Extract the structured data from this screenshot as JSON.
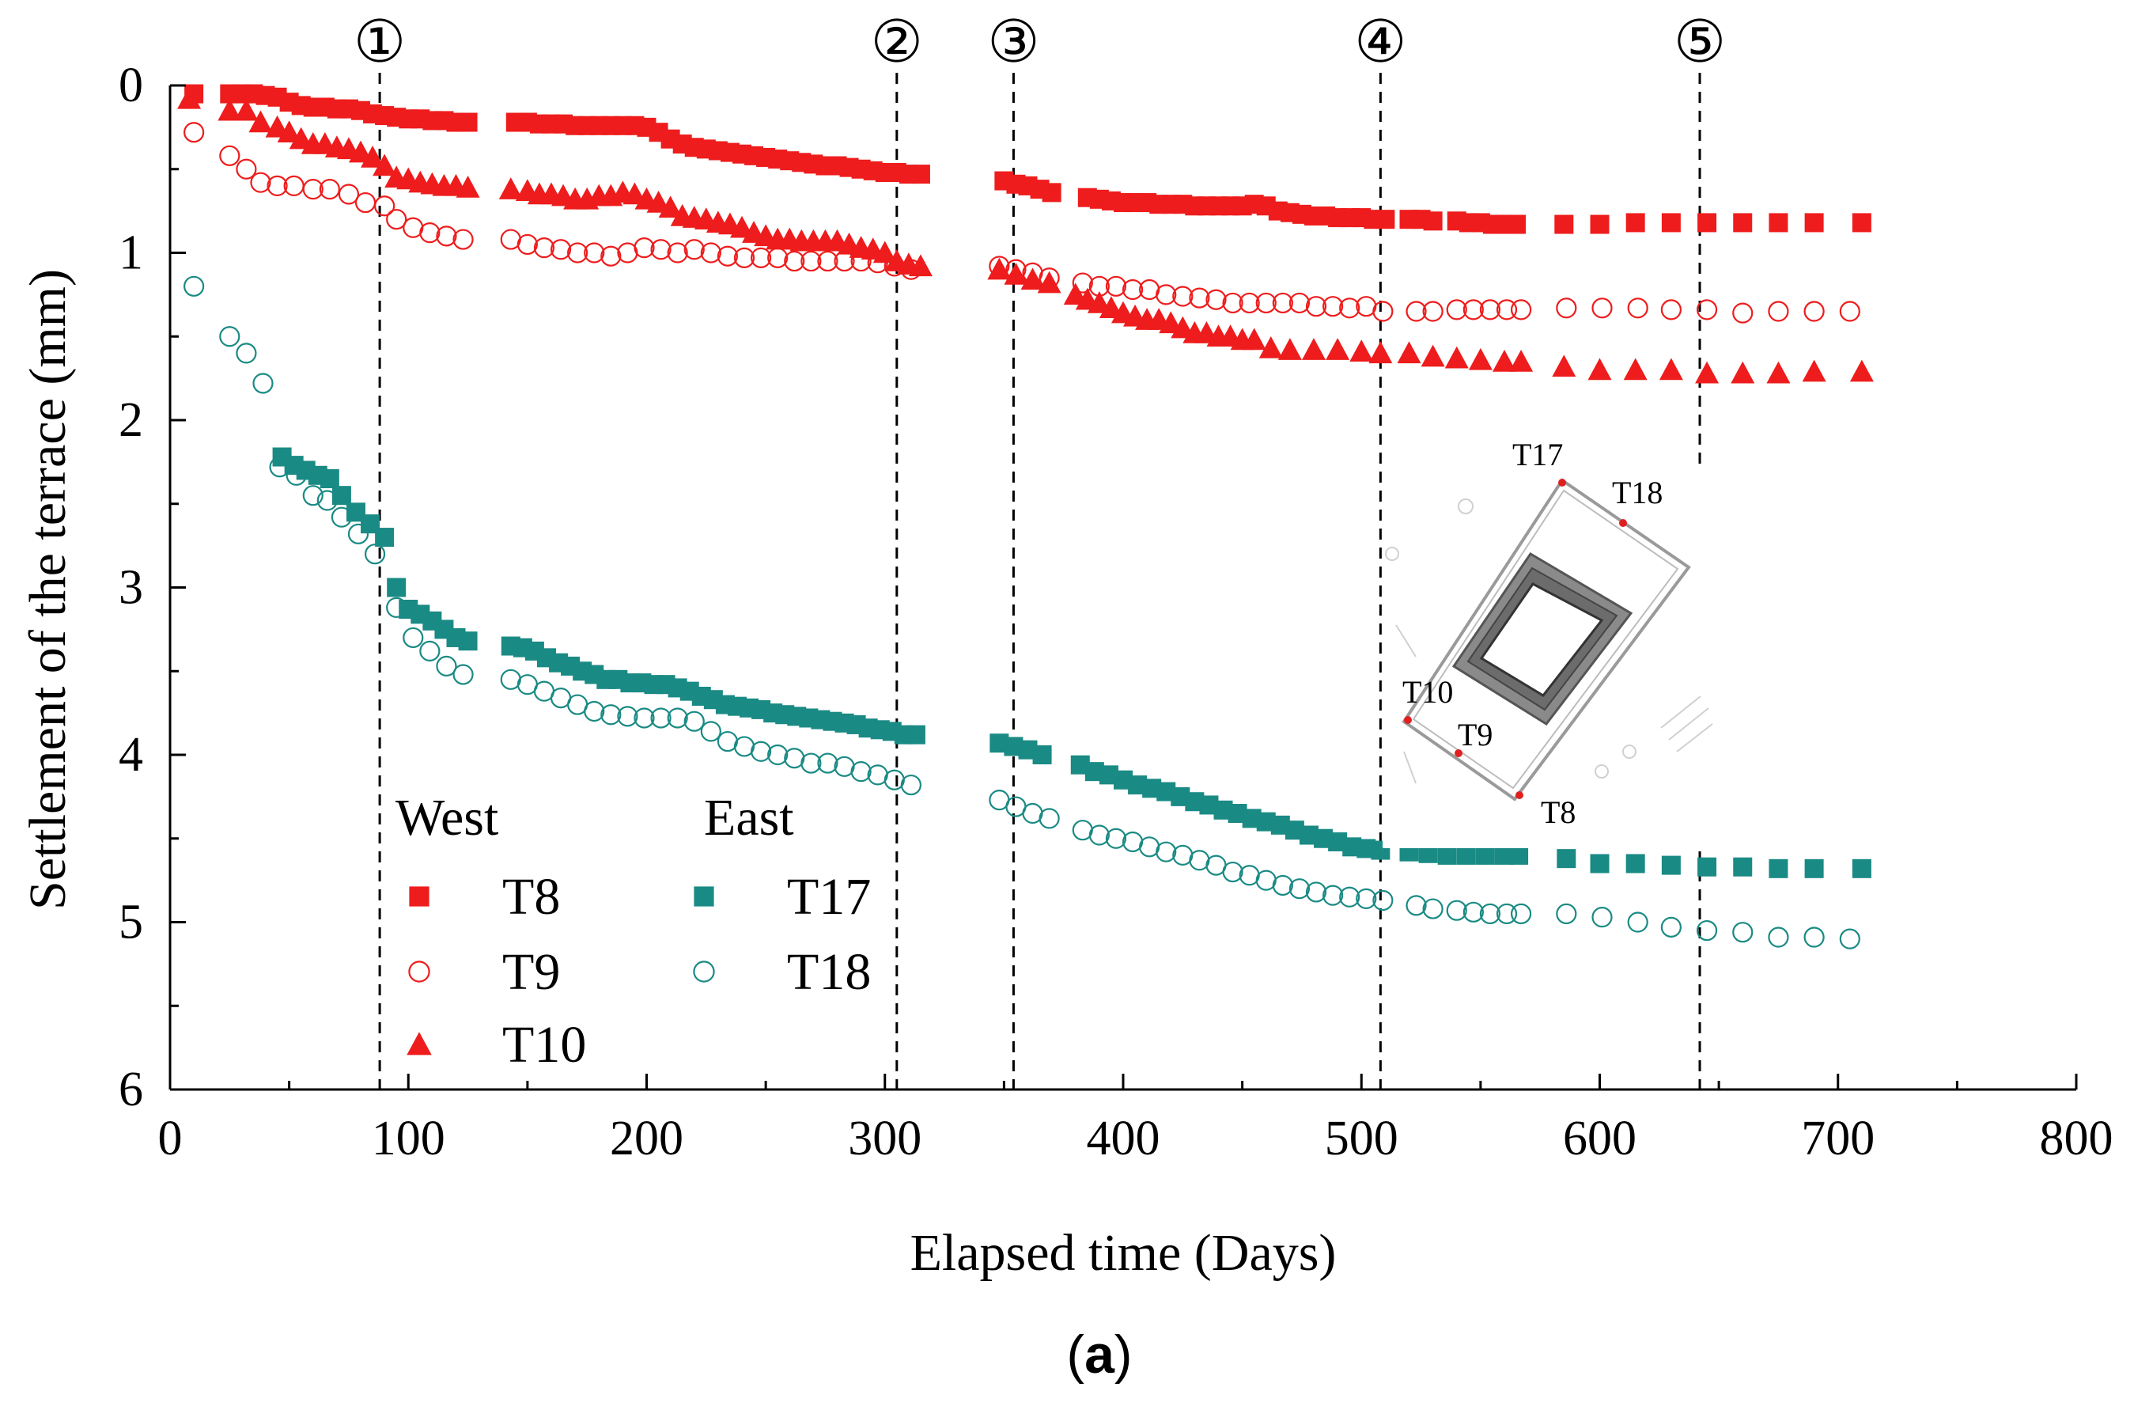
{
  "chart_data": {
    "type": "scatter",
    "xlabel": "Elapsed time (Days)",
    "ylabel": "Settlement of the terrace (mm)",
    "xlim": [
      0,
      800
    ],
    "ylim": [
      0,
      6
    ],
    "y_inverted": true,
    "xticks": [
      0,
      100,
      200,
      300,
      400,
      500,
      600,
      700,
      800
    ],
    "yticks": [
      0,
      1,
      2,
      3,
      4,
      5,
      6
    ],
    "caption_prefix": "(",
    "caption_letter": "a",
    "caption_suffix": ")",
    "stages": [
      {
        "label": "①",
        "x": 88
      },
      {
        "label": "②",
        "x": 305
      },
      {
        "label": "③",
        "x": 354
      },
      {
        "label": "④",
        "x": 508
      },
      {
        "label": "⑤",
        "x": 642
      }
    ],
    "legend": {
      "west_title": "West",
      "east_title": "East"
    },
    "inset": {
      "labels": [
        "T17",
        "T18",
        "T10",
        "T9",
        "T8"
      ]
    },
    "colors": {
      "west": "#ee1c1c",
      "east": "#1a8a84",
      "axis": "#000000"
    },
    "series": [
      {
        "name": "T8",
        "group": "West",
        "marker": "square",
        "color": "#ee1c1c",
        "x": [
          10,
          25,
          30,
          35,
          40,
          45,
          50,
          55,
          60,
          65,
          70,
          75,
          80,
          85,
          90,
          95,
          100,
          105,
          110,
          115,
          120,
          125,
          145,
          150,
          155,
          160,
          165,
          170,
          175,
          180,
          185,
          190,
          195,
          200,
          205,
          210,
          215,
          220,
          225,
          230,
          235,
          240,
          245,
          250,
          255,
          260,
          265,
          270,
          275,
          280,
          285,
          290,
          295,
          300,
          305,
          310,
          315,
          350,
          355,
          360,
          365,
          370,
          385,
          390,
          395,
          400,
          405,
          410,
          415,
          420,
          425,
          430,
          435,
          440,
          445,
          450,
          455,
          460,
          465,
          470,
          475,
          480,
          485,
          490,
          495,
          500,
          505,
          510,
          520,
          525,
          530,
          540,
          545,
          550,
          555,
          560,
          565,
          585,
          600,
          615,
          630,
          645,
          660,
          675,
          690,
          710
        ],
        "values": [
          0.05,
          0.05,
          0.05,
          0.05,
          0.06,
          0.07,
          0.1,
          0.12,
          0.13,
          0.13,
          0.14,
          0.14,
          0.15,
          0.17,
          0.18,
          0.19,
          0.2,
          0.2,
          0.21,
          0.21,
          0.22,
          0.22,
          0.22,
          0.22,
          0.23,
          0.23,
          0.23,
          0.24,
          0.24,
          0.24,
          0.24,
          0.24,
          0.24,
          0.25,
          0.28,
          0.32,
          0.35,
          0.37,
          0.38,
          0.39,
          0.4,
          0.41,
          0.42,
          0.43,
          0.44,
          0.45,
          0.46,
          0.47,
          0.48,
          0.48,
          0.49,
          0.5,
          0.51,
          0.52,
          0.52,
          0.53,
          0.53,
          0.57,
          0.59,
          0.6,
          0.62,
          0.64,
          0.67,
          0.68,
          0.69,
          0.7,
          0.7,
          0.7,
          0.71,
          0.71,
          0.71,
          0.72,
          0.72,
          0.72,
          0.72,
          0.72,
          0.71,
          0.72,
          0.75,
          0.76,
          0.77,
          0.78,
          0.78,
          0.79,
          0.79,
          0.79,
          0.8,
          0.8,
          0.8,
          0.8,
          0.81,
          0.81,
          0.82,
          0.82,
          0.83,
          0.83,
          0.83,
          0.83,
          0.83,
          0.82,
          0.82,
          0.82,
          0.82,
          0.82,
          0.82,
          0.82
        ]
      },
      {
        "name": "T9",
        "group": "West",
        "marker": "open-circle",
        "color": "#ee1c1c",
        "x": [
          10,
          25,
          32,
          38,
          45,
          52,
          60,
          67,
          75,
          82,
          90,
          95,
          102,
          109,
          116,
          123,
          143,
          150,
          157,
          164,
          171,
          178,
          185,
          192,
          199,
          206,
          213,
          220,
          227,
          234,
          241,
          248,
          255,
          262,
          269,
          276,
          283,
          290,
          297,
          304,
          311,
          348,
          355,
          362,
          369,
          383,
          390,
          397,
          404,
          411,
          418,
          425,
          432,
          439,
          446,
          453,
          460,
          467,
          474,
          481,
          488,
          495,
          502,
          509,
          523,
          530,
          540,
          547,
          554,
          561,
          567,
          586,
          601,
          616,
          630,
          645,
          660,
          675,
          690,
          705
        ],
        "values": [
          0.28,
          0.42,
          0.5,
          0.58,
          0.6,
          0.6,
          0.62,
          0.62,
          0.65,
          0.7,
          0.72,
          0.8,
          0.85,
          0.88,
          0.9,
          0.92,
          0.92,
          0.95,
          0.97,
          0.98,
          1.0,
          1.0,
          1.02,
          1.0,
          0.97,
          0.98,
          1.0,
          0.98,
          1.0,
          1.02,
          1.03,
          1.03,
          1.03,
          1.05,
          1.05,
          1.05,
          1.05,
          1.05,
          1.06,
          1.08,
          1.1,
          1.08,
          1.1,
          1.12,
          1.15,
          1.18,
          1.2,
          1.2,
          1.22,
          1.22,
          1.25,
          1.26,
          1.27,
          1.28,
          1.3,
          1.3,
          1.3,
          1.3,
          1.3,
          1.32,
          1.32,
          1.33,
          1.32,
          1.35,
          1.35,
          1.35,
          1.34,
          1.34,
          1.34,
          1.34,
          1.34,
          1.33,
          1.33,
          1.33,
          1.34,
          1.34,
          1.36,
          1.35,
          1.35,
          1.35
        ]
      },
      {
        "name": "T10",
        "group": "West",
        "marker": "triangle",
        "color": "#ee1c1c",
        "x": [
          8,
          25,
          32,
          38,
          45,
          50,
          55,
          60,
          65,
          70,
          75,
          80,
          85,
          90,
          95,
          100,
          105,
          110,
          115,
          120,
          125,
          143,
          150,
          155,
          160,
          165,
          170,
          175,
          180,
          185,
          190,
          195,
          200,
          205,
          210,
          215,
          220,
          225,
          230,
          235,
          240,
          245,
          250,
          255,
          260,
          265,
          270,
          275,
          280,
          285,
          290,
          295,
          300,
          305,
          310,
          315,
          348,
          355,
          362,
          369,
          380,
          385,
          390,
          395,
          400,
          405,
          410,
          415,
          420,
          425,
          430,
          435,
          440,
          445,
          450,
          455,
          462,
          470,
          480,
          490,
          500,
          508,
          520,
          530,
          540,
          550,
          560,
          567,
          585,
          600,
          615,
          630,
          645,
          660,
          675,
          690,
          710
        ],
        "values": [
          0.08,
          0.15,
          0.15,
          0.22,
          0.25,
          0.28,
          0.32,
          0.35,
          0.35,
          0.37,
          0.38,
          0.4,
          0.43,
          0.48,
          0.55,
          0.56,
          0.58,
          0.59,
          0.6,
          0.6,
          0.61,
          0.62,
          0.63,
          0.65,
          0.65,
          0.66,
          0.68,
          0.68,
          0.66,
          0.66,
          0.64,
          0.65,
          0.68,
          0.7,
          0.73,
          0.78,
          0.79,
          0.8,
          0.82,
          0.83,
          0.85,
          0.88,
          0.9,
          0.92,
          0.92,
          0.93,
          0.93,
          0.93,
          0.93,
          0.95,
          0.97,
          0.98,
          1.0,
          1.05,
          1.07,
          1.08,
          1.1,
          1.13,
          1.16,
          1.18,
          1.25,
          1.28,
          1.3,
          1.33,
          1.36,
          1.38,
          1.4,
          1.4,
          1.42,
          1.45,
          1.48,
          1.48,
          1.5,
          1.5,
          1.52,
          1.52,
          1.57,
          1.58,
          1.58,
          1.58,
          1.59,
          1.6,
          1.6,
          1.62,
          1.63,
          1.64,
          1.65,
          1.65,
          1.68,
          1.7,
          1.7,
          1.7,
          1.72,
          1.72,
          1.72,
          1.71,
          1.71
        ]
      },
      {
        "name": "T17",
        "group": "East",
        "marker": "square",
        "color": "#1a8a84",
        "x": [
          47,
          52,
          57,
          62,
          67,
          72,
          78,
          84,
          90,
          95,
          100,
          105,
          110,
          115,
          120,
          125,
          143,
          148,
          153,
          158,
          163,
          168,
          173,
          178,
          183,
          188,
          193,
          198,
          203,
          208,
          213,
          218,
          223,
          228,
          233,
          238,
          243,
          248,
          253,
          258,
          263,
          268,
          273,
          278,
          283,
          288,
          293,
          298,
          303,
          308,
          313,
          348,
          354,
          360,
          366,
          382,
          388,
          394,
          400,
          406,
          412,
          418,
          424,
          430,
          436,
          442,
          448,
          454,
          460,
          466,
          472,
          478,
          484,
          490,
          496,
          502,
          508,
          520,
          528,
          536,
          544,
          552,
          560,
          566,
          586,
          600,
          615,
          630,
          645,
          660,
          675,
          690,
          710
        ],
        "values": [
          2.22,
          2.27,
          2.3,
          2.33,
          2.35,
          2.45,
          2.55,
          2.62,
          2.7,
          3.0,
          3.13,
          3.16,
          3.2,
          3.25,
          3.3,
          3.32,
          3.35,
          3.36,
          3.38,
          3.42,
          3.45,
          3.47,
          3.5,
          3.52,
          3.55,
          3.55,
          3.57,
          3.57,
          3.58,
          3.58,
          3.6,
          3.62,
          3.65,
          3.67,
          3.7,
          3.71,
          3.72,
          3.73,
          3.75,
          3.76,
          3.77,
          3.78,
          3.79,
          3.8,
          3.81,
          3.82,
          3.84,
          3.85,
          3.86,
          3.88,
          3.88,
          3.93,
          3.95,
          3.97,
          4.0,
          4.06,
          4.1,
          4.12,
          4.15,
          4.18,
          4.2,
          4.22,
          4.25,
          4.28,
          4.3,
          4.33,
          4.35,
          4.38,
          4.4,
          4.42,
          4.45,
          4.48,
          4.5,
          4.52,
          4.55,
          4.56,
          4.57,
          4.58,
          4.59,
          4.6,
          4.6,
          4.6,
          4.6,
          4.6,
          4.62,
          4.65,
          4.65,
          4.66,
          4.67,
          4.67,
          4.68,
          4.68,
          4.68
        ]
      },
      {
        "name": "T18",
        "group": "East",
        "marker": "open-circle",
        "color": "#1a8a84",
        "x": [
          10,
          25,
          32,
          39,
          46,
          53,
          60,
          66,
          72,
          79,
          86,
          95,
          102,
          109,
          116,
          123,
          143,
          150,
          157,
          164,
          171,
          178,
          185,
          192,
          199,
          206,
          213,
          220,
          227,
          234,
          241,
          248,
          255,
          262,
          269,
          276,
          283,
          290,
          297,
          304,
          311,
          348,
          355,
          362,
          369,
          383,
          390,
          397,
          404,
          411,
          418,
          425,
          432,
          439,
          446,
          453,
          460,
          467,
          474,
          481,
          488,
          495,
          502,
          509,
          523,
          530,
          540,
          547,
          554,
          561,
          567,
          586,
          601,
          616,
          630,
          645,
          660,
          675,
          690,
          705
        ],
        "values": [
          1.2,
          1.5,
          1.6,
          1.78,
          2.28,
          2.33,
          2.45,
          2.48,
          2.58,
          2.68,
          2.8,
          3.12,
          3.3,
          3.38,
          3.47,
          3.52,
          3.55,
          3.58,
          3.62,
          3.66,
          3.7,
          3.74,
          3.76,
          3.77,
          3.78,
          3.78,
          3.78,
          3.8,
          3.86,
          3.92,
          3.95,
          3.98,
          4.0,
          4.02,
          4.05,
          4.05,
          4.07,
          4.1,
          4.12,
          4.15,
          4.18,
          4.27,
          4.31,
          4.35,
          4.38,
          4.45,
          4.48,
          4.5,
          4.52,
          4.55,
          4.58,
          4.6,
          4.63,
          4.66,
          4.7,
          4.72,
          4.75,
          4.78,
          4.8,
          4.82,
          4.84,
          4.85,
          4.86,
          4.87,
          4.9,
          4.92,
          4.93,
          4.94,
          4.95,
          4.95,
          4.95,
          4.95,
          4.97,
          5.0,
          5.03,
          5.05,
          5.06,
          5.09,
          5.09,
          5.1
        ]
      }
    ]
  }
}
